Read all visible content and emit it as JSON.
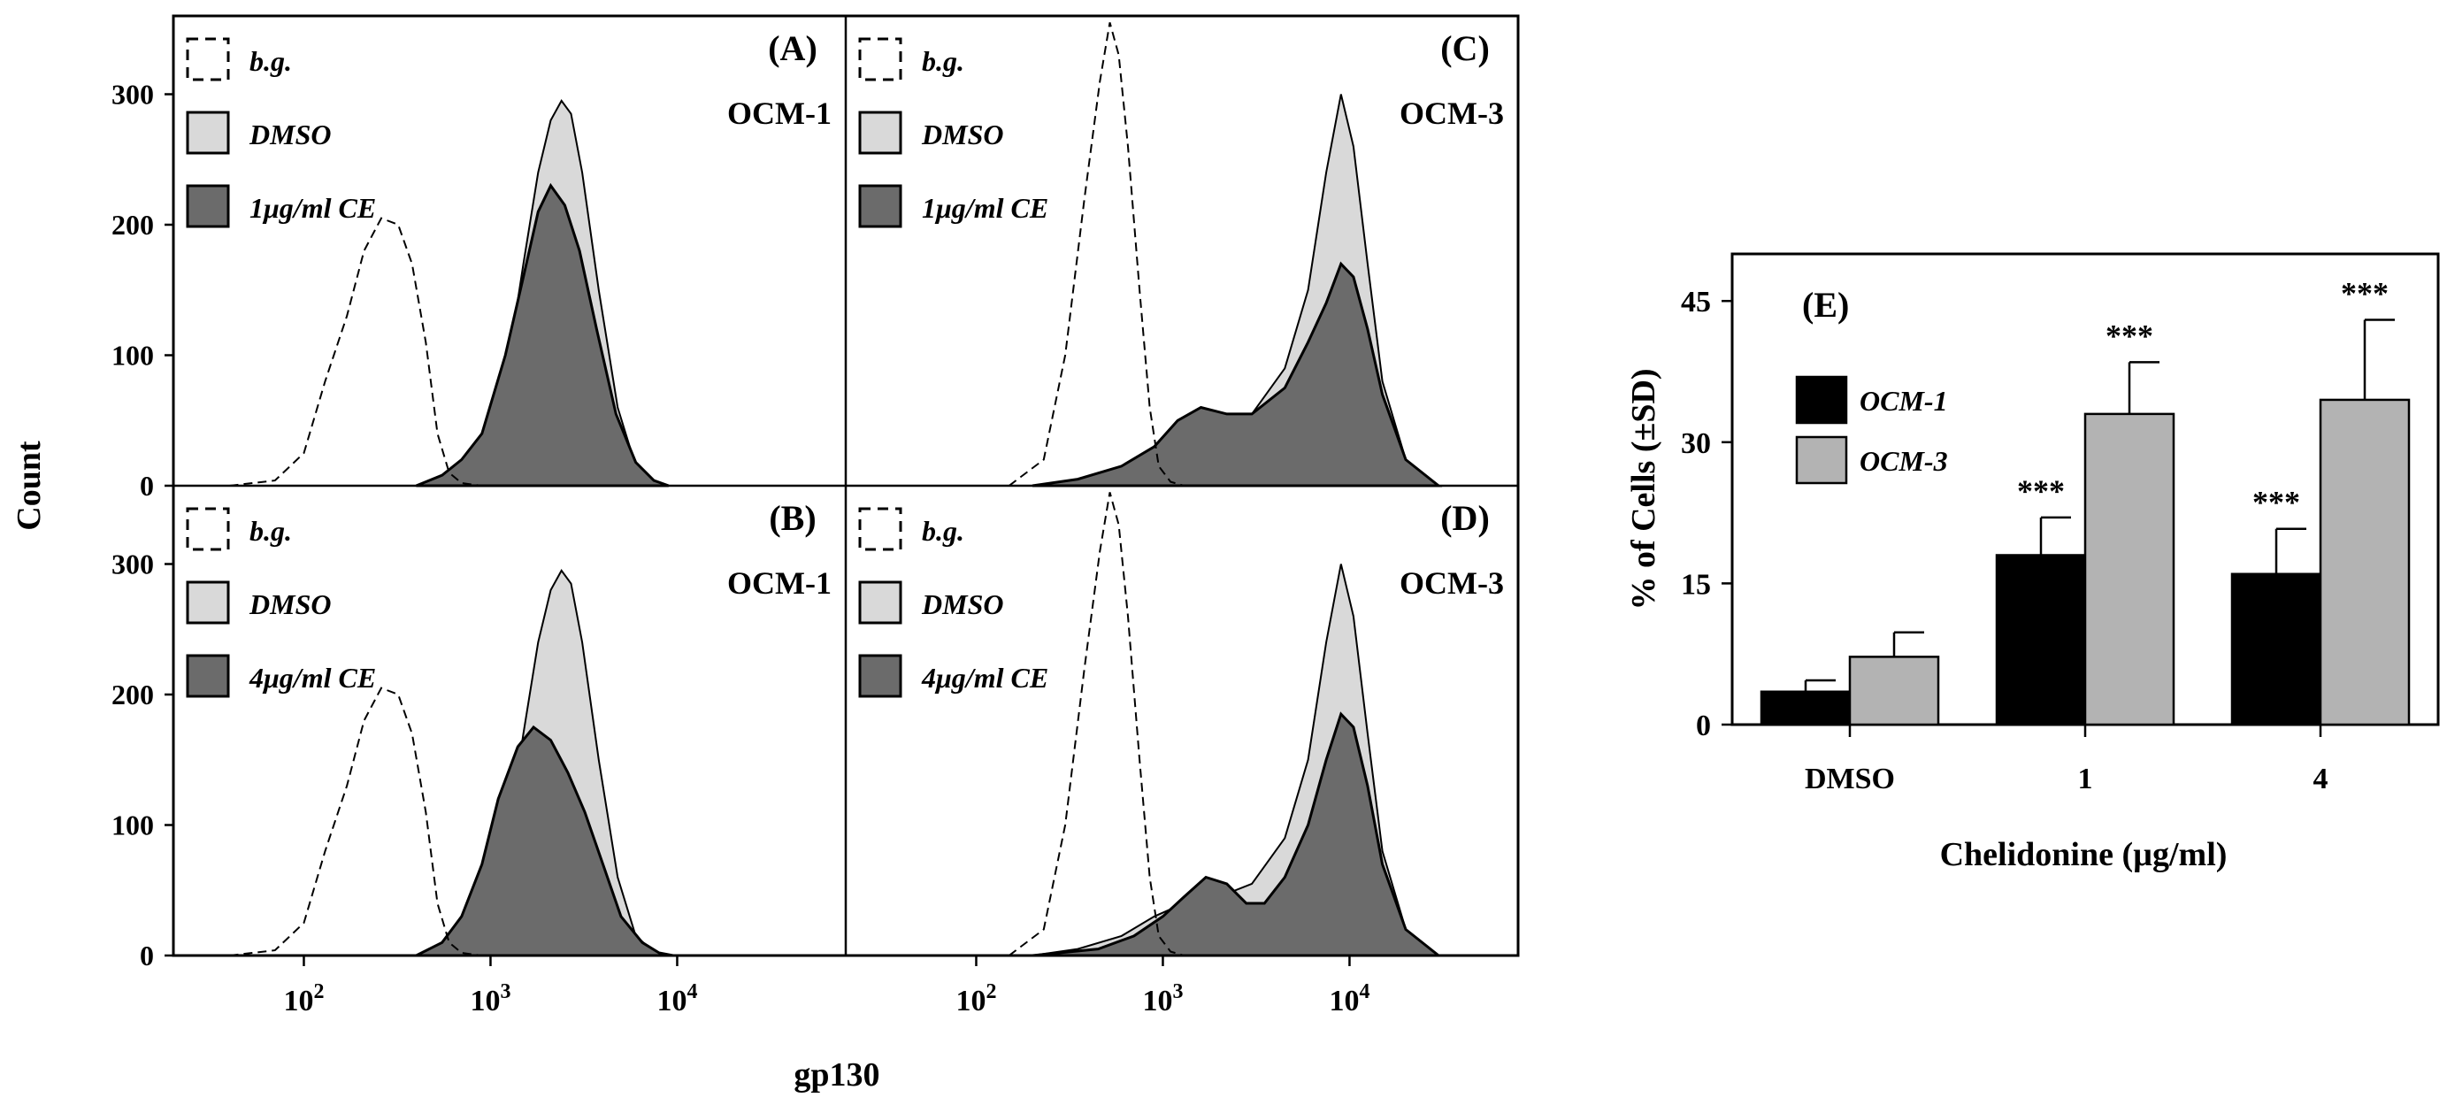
{
  "figure": {
    "flow": {
      "ylabel": "Count",
      "xlabel": "gp130",
      "y_ticks": [
        0,
        100,
        200,
        300
      ],
      "ylim": [
        0,
        360
      ],
      "x_scale": "log",
      "xlim": [
        20,
        80000
      ],
      "x_ticks": [
        {
          "value": 100,
          "base": "10",
          "exp": "2"
        },
        {
          "value": 1000,
          "base": "10",
          "exp": "3"
        },
        {
          "value": 10000,
          "base": "10",
          "exp": "4"
        }
      ],
      "colors": {
        "bg_line": "#000000",
        "dmso_fill": "#d9d9d9",
        "ce_fill": "#6b6b6b",
        "outline": "#000000"
      },
      "panels": [
        {
          "id": "A",
          "tag": "(A)",
          "cell_line": "OCM-1",
          "legend": [
            "b.g.",
            "DMSO",
            "1μg/ml CE"
          ],
          "series": {
            "bg": [
              [
                40,
                0
              ],
              [
                70,
                4
              ],
              [
                100,
                25
              ],
              [
                130,
                80
              ],
              [
                170,
                130
              ],
              [
                210,
                180
              ],
              [
                260,
                205
              ],
              [
                320,
                200
              ],
              [
                380,
                170
              ],
              [
                450,
                110
              ],
              [
                520,
                40
              ],
              [
                600,
                10
              ],
              [
                700,
                2
              ],
              [
                900,
                0
              ]
            ],
            "dmso": [
              [
                400,
                0
              ],
              [
                650,
                5
              ],
              [
                900,
                25
              ],
              [
                1200,
                80
              ],
              [
                1500,
                170
              ],
              [
                1800,
                240
              ],
              [
                2100,
                280
              ],
              [
                2400,
                295
              ],
              [
                2700,
                285
              ],
              [
                3100,
                240
              ],
              [
                3800,
                150
              ],
              [
                4800,
                60
              ],
              [
                6000,
                15
              ],
              [
                7500,
                3
              ],
              [
                9000,
                0
              ]
            ],
            "ce": [
              [
                400,
                0
              ],
              [
                550,
                8
              ],
              [
                700,
                20
              ],
              [
                900,
                40
              ],
              [
                1200,
                100
              ],
              [
                1500,
                160
              ],
              [
                1800,
                210
              ],
              [
                2100,
                230
              ],
              [
                2500,
                215
              ],
              [
                3000,
                180
              ],
              [
                3700,
                120
              ],
              [
                4700,
                55
              ],
              [
                6000,
                18
              ],
              [
                7500,
                4
              ],
              [
                9000,
                0
              ]
            ]
          }
        },
        {
          "id": "B",
          "tag": "(B)",
          "cell_line": "OCM-1",
          "legend": [
            "b.g.",
            "DMSO",
            "4μg/ml CE"
          ],
          "series": {
            "bg": [
              [
                40,
                0
              ],
              [
                70,
                4
              ],
              [
                100,
                25
              ],
              [
                130,
                80
              ],
              [
                170,
                130
              ],
              [
                210,
                180
              ],
              [
                260,
                205
              ],
              [
                320,
                200
              ],
              [
                380,
                170
              ],
              [
                450,
                110
              ],
              [
                520,
                40
              ],
              [
                600,
                10
              ],
              [
                700,
                2
              ],
              [
                900,
                0
              ]
            ],
            "dmso": [
              [
                400,
                0
              ],
              [
                650,
                5
              ],
              [
                900,
                25
              ],
              [
                1200,
                80
              ],
              [
                1500,
                170
              ],
              [
                1800,
                240
              ],
              [
                2100,
                280
              ],
              [
                2400,
                295
              ],
              [
                2700,
                285
              ],
              [
                3100,
                240
              ],
              [
                3800,
                150
              ],
              [
                4800,
                60
              ],
              [
                6000,
                15
              ],
              [
                7500,
                3
              ],
              [
                9000,
                0
              ]
            ],
            "ce": [
              [
                400,
                0
              ],
              [
                550,
                10
              ],
              [
                700,
                30
              ],
              [
                900,
                70
              ],
              [
                1100,
                120
              ],
              [
                1400,
                160
              ],
              [
                1700,
                175
              ],
              [
                2100,
                165
              ],
              [
                2600,
                140
              ],
              [
                3200,
                110
              ],
              [
                4000,
                70
              ],
              [
                5000,
                30
              ],
              [
                6500,
                10
              ],
              [
                8000,
                2
              ],
              [
                9500,
                0
              ]
            ]
          }
        },
        {
          "id": "C",
          "tag": "(C)",
          "cell_line": "OCM-3",
          "legend": [
            "b.g.",
            "DMSO",
            "1μg/ml CE"
          ],
          "series": {
            "bg": [
              [
                150,
                0
              ],
              [
                230,
                20
              ],
              [
                300,
                100
              ],
              [
                380,
                220
              ],
              [
                460,
                310
              ],
              [
                520,
                355
              ],
              [
                580,
                330
              ],
              [
                650,
                260
              ],
              [
                750,
                150
              ],
              [
                850,
                60
              ],
              [
                950,
                15
              ],
              [
                1100,
                3
              ],
              [
                1300,
                0
              ]
            ],
            "dmso": [
              [
                200,
                0
              ],
              [
                350,
                5
              ],
              [
                600,
                15
              ],
              [
                900,
                30
              ],
              [
                1300,
                40
              ],
              [
                2000,
                45
              ],
              [
                3000,
                55
              ],
              [
                4500,
                90
              ],
              [
                6000,
                150
              ],
              [
                7500,
                240
              ],
              [
                9000,
                300
              ],
              [
                10500,
                260
              ],
              [
                12500,
                170
              ],
              [
                15000,
                80
              ],
              [
                20000,
                20
              ],
              [
                30000,
                0
              ]
            ],
            "ce": [
              [
                200,
                0
              ],
              [
                350,
                5
              ],
              [
                600,
                15
              ],
              [
                900,
                30
              ],
              [
                1200,
                50
              ],
              [
                1600,
                60
              ],
              [
                2200,
                55
              ],
              [
                3000,
                55
              ],
              [
                4500,
                75
              ],
              [
                6000,
                110
              ],
              [
                7500,
                140
              ],
              [
                9000,
                170
              ],
              [
                10500,
                160
              ],
              [
                12500,
                120
              ],
              [
                15000,
                70
              ],
              [
                20000,
                20
              ],
              [
                30000,
                0
              ]
            ]
          }
        },
        {
          "id": "D",
          "tag": "(D)",
          "cell_line": "OCM-3",
          "legend": [
            "b.g.",
            "DMSO",
            "4μg/ml CE"
          ],
          "series": {
            "bg": [
              [
                150,
                0
              ],
              [
                230,
                20
              ],
              [
                300,
                100
              ],
              [
                380,
                220
              ],
              [
                460,
                310
              ],
              [
                520,
                355
              ],
              [
                580,
                330
              ],
              [
                650,
                260
              ],
              [
                750,
                150
              ],
              [
                850,
                60
              ],
              [
                950,
                15
              ],
              [
                1100,
                3
              ],
              [
                1300,
                0
              ]
            ],
            "dmso": [
              [
                200,
                0
              ],
              [
                350,
                5
              ],
              [
                600,
                15
              ],
              [
                900,
                30
              ],
              [
                1300,
                40
              ],
              [
                2000,
                45
              ],
              [
                3000,
                55
              ],
              [
                4500,
                90
              ],
              [
                6000,
                150
              ],
              [
                7500,
                240
              ],
              [
                9000,
                300
              ],
              [
                10500,
                260
              ],
              [
                12500,
                170
              ],
              [
                15000,
                80
              ],
              [
                20000,
                20
              ],
              [
                30000,
                0
              ]
            ],
            "ce": [
              [
                200,
                0
              ],
              [
                450,
                5
              ],
              [
                700,
                15
              ],
              [
                1000,
                30
              ],
              [
                1300,
                45
              ],
              [
                1700,
                60
              ],
              [
                2200,
                55
              ],
              [
                2800,
                40
              ],
              [
                3500,
                40
              ],
              [
                4500,
                60
              ],
              [
                6000,
                100
              ],
              [
                7500,
                150
              ],
              [
                9000,
                185
              ],
              [
                10500,
                175
              ],
              [
                12500,
                130
              ],
              [
                15000,
                70
              ],
              [
                20000,
                20
              ],
              [
                30000,
                0
              ]
            ]
          }
        }
      ]
    },
    "bar": {
      "tag": "(E)",
      "ylabel": "% of Cells (±SD)",
      "xlabel": "Chelidonine (µg/ml)",
      "categories": [
        "DMSO",
        "1",
        "4"
      ],
      "y_ticks": [
        0,
        15,
        30,
        45
      ],
      "ylim": [
        0,
        50
      ],
      "significance": "***",
      "colors": {
        "OCM-1": "#000000",
        "OCM-3": "#b3b3b3"
      }
    }
  },
  "chart_data": [
    {
      "type": "bar",
      "title": "(E)",
      "categories": [
        "DMSO",
        "1",
        "4"
      ],
      "series": [
        {
          "name": "OCM-1",
          "values": [
            3.5,
            18,
            16
          ],
          "errors": [
            1.2,
            4.0,
            4.8
          ],
          "significant": [
            false,
            true,
            true
          ]
        },
        {
          "name": "OCM-3",
          "values": [
            7.2,
            33,
            34.5
          ],
          "errors": [
            2.6,
            5.5,
            8.5
          ],
          "significant": [
            false,
            true,
            true
          ]
        }
      ],
      "xlabel": "Chelidonine (µg/ml)",
      "ylabel": "% of Cells (±SD)",
      "ylim": [
        0,
        50
      ],
      "legend": "top-left"
    },
    {
      "type": "area",
      "title": "(A) OCM-1",
      "xlabel": "gp130",
      "ylabel": "Count",
      "x_scale": "log",
      "series": [
        "b.g.",
        "DMSO",
        "1μg/ml CE"
      ]
    },
    {
      "type": "area",
      "title": "(B) OCM-1",
      "xlabel": "gp130",
      "ylabel": "Count",
      "x_scale": "log",
      "series": [
        "b.g.",
        "DMSO",
        "4μg/ml CE"
      ]
    },
    {
      "type": "area",
      "title": "(C) OCM-3",
      "xlabel": "gp130",
      "ylabel": "Count",
      "x_scale": "log",
      "series": [
        "b.g.",
        "DMSO",
        "1μg/ml CE"
      ]
    },
    {
      "type": "area",
      "title": "(D) OCM-3",
      "xlabel": "gp130",
      "ylabel": "Count",
      "x_scale": "log",
      "series": [
        "b.g.",
        "DMSO",
        "4μg/ml CE"
      ]
    }
  ]
}
